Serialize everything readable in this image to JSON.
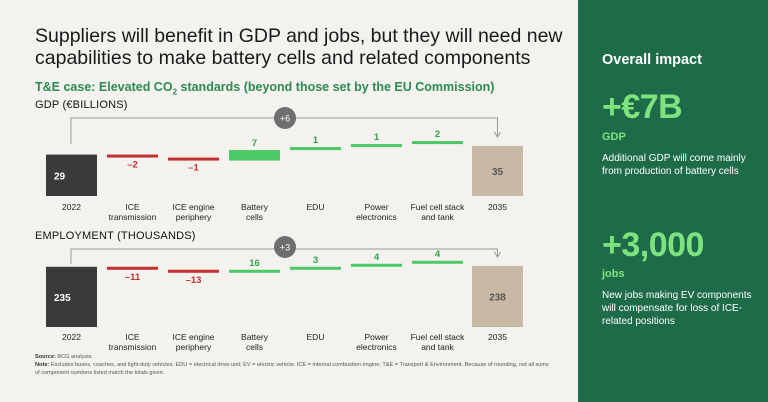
{
  "title": "Suppliers will benefit in GDP and jobs, but they will need new capabilities to make battery cells and related components",
  "subtitle": {
    "pre": "T&E case: Elevated CO",
    "sub": "2",
    "post": " standards (beyond those set by the EU Commission)"
  },
  "colors": {
    "start_bar": "#3a3a3a",
    "end_bar": "#c8b9a4",
    "negative": "#c23030",
    "positive": "#4cc864",
    "connector": "#9a9a9a",
    "badge": "#6e6e6e",
    "sidebar": "#1e6b4a",
    "highlight": "#7ee37e"
  },
  "chart_data": [
    {
      "type": "waterfall",
      "title": "GDP (€BILLIONS)",
      "categories": [
        "2022",
        "ICE transmission",
        "ICE engine periphery",
        "Battery cells",
        "EDU",
        "Power electronics",
        "Fuel cell stack and tank",
        "2035"
      ],
      "category_lines": [
        [
          "2022"
        ],
        [
          "ICE",
          "transmission"
        ],
        [
          "ICE engine",
          "periphery"
        ],
        [
          "Battery",
          "cells"
        ],
        [
          "EDU"
        ],
        [
          "Power",
          "electronics"
        ],
        [
          "Fuel cell stack",
          "and tank"
        ],
        [
          "2035"
        ]
      ],
      "start": 29,
      "deltas": [
        -2,
        -1,
        7,
        1,
        1,
        2
      ],
      "end": 35,
      "labels": [
        "29",
        "–2",
        "–1",
        "7",
        "1",
        "1",
        "2",
        "35"
      ],
      "net_change_label": "+6"
    },
    {
      "type": "waterfall",
      "title": "EMPLOYMENT (THOUSANDS)",
      "categories": [
        "2022",
        "ICE transmission",
        "ICE engine periphery",
        "Battery cells",
        "EDU",
        "Power electronics",
        "Fuel cell stack and tank",
        "2035"
      ],
      "category_lines": [
        [
          "2022"
        ],
        [
          "ICE",
          "transmission"
        ],
        [
          "ICE engine",
          "periphery"
        ],
        [
          "Battery",
          "cells"
        ],
        [
          "EDU"
        ],
        [
          "Power",
          "electronics"
        ],
        [
          "Fuel cell stack",
          "and tank"
        ],
        [
          "2035"
        ]
      ],
      "start": 235,
      "deltas": [
        -11,
        -13,
        16,
        3,
        4,
        4
      ],
      "end": 238,
      "labels": [
        "235",
        "–11",
        "–13",
        "16",
        "3",
        "4",
        "4",
        "238"
      ],
      "net_change_label": "+3"
    }
  ],
  "footer": {
    "source_label": "Source:",
    "source_text": " BCG analysis.",
    "note_label": "Note:",
    "note_text": " Excludes buses, coaches, and light-duty vehicles. EDU = electrical drive unit; EV = electric vehicle; ICE = internal combustion engine; T&E = Transport & Environment. Because of rounding, not all sums of component numbers listed match the totals given."
  },
  "sidebar": {
    "title": "Overall impact",
    "gdp_value": "+€7B",
    "gdp_label": "GDP",
    "gdp_desc": "Additional GDP will come mainly from production of battery cells",
    "jobs_value": "+3,000",
    "jobs_label": "jobs",
    "jobs_desc": "New jobs making EV components will compensate for loss of ICE-related positions"
  }
}
